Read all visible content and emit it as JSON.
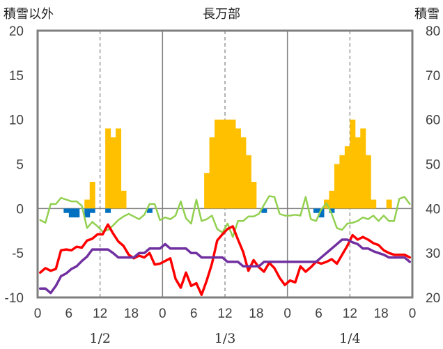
{
  "chart_data": {
    "type": "bar+line",
    "title": "長万部",
    "left_axis_title": "積雪以外",
    "right_axis_title": "積雪",
    "left_axis": {
      "ylim": [
        -10,
        20
      ],
      "ticks": [
        20,
        15,
        10,
        5,
        0,
        -5,
        -10
      ]
    },
    "right_axis": {
      "ylim": [
        20,
        80
      ],
      "ticks": [
        80,
        70,
        60,
        50,
        40,
        30,
        20
      ]
    },
    "x_hours_total": 72,
    "x_tick_labels": [
      "0",
      "6",
      "12",
      "18",
      "0",
      "6",
      "12",
      "18",
      "0",
      "6",
      "12",
      "18",
      "0"
    ],
    "x_tick_hours": [
      0,
      6,
      12,
      18,
      24,
      30,
      36,
      42,
      48,
      54,
      60,
      66,
      72
    ],
    "day_labels": [
      "1/2",
      "1/3",
      "1/4"
    ],
    "day_label_hours": [
      12,
      36,
      60
    ],
    "grid": {
      "solid_vertical_hours": [
        24,
        48
      ],
      "dashed_vertical_hours": [
        12,
        36,
        60
      ],
      "zero_line": true
    },
    "precipitation_bars": {
      "color": "#FFC000",
      "points": [
        [
          9,
          1
        ],
        [
          10,
          3
        ],
        [
          13,
          9
        ],
        [
          14,
          8
        ],
        [
          15,
          9
        ],
        [
          16,
          2
        ],
        [
          32,
          4
        ],
        [
          33,
          8
        ],
        [
          34,
          10
        ],
        [
          35,
          10
        ],
        [
          36,
          10
        ],
        [
          37,
          10
        ],
        [
          38,
          9
        ],
        [
          39,
          8
        ],
        [
          40,
          6
        ],
        [
          41,
          3
        ],
        [
          55,
          1
        ],
        [
          56,
          2
        ],
        [
          57,
          5
        ],
        [
          58,
          6
        ],
        [
          59,
          7
        ],
        [
          60,
          10
        ],
        [
          61,
          8
        ],
        [
          62,
          9
        ],
        [
          63,
          6
        ],
        [
          64,
          1
        ],
        [
          67,
          1
        ]
      ]
    },
    "negative_bars": {
      "color": "#0070C0",
      "points": [
        [
          5,
          -0.5
        ],
        [
          6,
          -1
        ],
        [
          7,
          -1
        ],
        [
          9,
          -1
        ],
        [
          10,
          -0.5
        ],
        [
          13,
          -0.5
        ],
        [
          21,
          -0.5
        ],
        [
          43,
          -0.5
        ],
        [
          53,
          -0.5
        ],
        [
          54,
          -1
        ],
        [
          56,
          -0.5
        ]
      ]
    },
    "series": [
      {
        "color": "#92D050",
        "axis": "left",
        "values": [
          [
            0,
            -1.3
          ],
          [
            1,
            -1.6
          ],
          [
            2,
            0.5
          ],
          [
            3,
            0.5
          ],
          [
            4,
            1.2
          ],
          [
            5,
            1.0
          ],
          [
            6,
            0.8
          ],
          [
            7,
            0.8
          ],
          [
            8,
            0.3
          ],
          [
            9,
            -2.2
          ],
          [
            10,
            -1.5
          ],
          [
            11,
            -2.0
          ],
          [
            12,
            -2.6
          ],
          [
            13,
            -2.4
          ],
          [
            14,
            -1.9
          ],
          [
            15,
            -1.3
          ],
          [
            16,
            -0.9
          ],
          [
            17,
            -0.6
          ],
          [
            18,
            -0.9
          ],
          [
            19,
            -1.2
          ],
          [
            20,
            -0.7
          ],
          [
            21,
            0.5
          ],
          [
            22,
            0.5
          ],
          [
            23,
            -1.3
          ],
          [
            24,
            -1.0
          ],
          [
            25,
            -1.2
          ],
          [
            26,
            -0.8
          ],
          [
            27,
            0.8
          ],
          [
            28,
            -1.1
          ],
          [
            29,
            -1.7
          ],
          [
            30,
            1.0
          ],
          [
            31,
            -1.4
          ],
          [
            32,
            -1.2
          ],
          [
            33,
            -0.8
          ],
          [
            34,
            -2.3
          ],
          [
            35,
            -2.7
          ],
          [
            36,
            -1.7
          ],
          [
            37,
            -3.2
          ],
          [
            38,
            -1.4
          ],
          [
            39,
            -1.4
          ],
          [
            40,
            -0.9
          ],
          [
            41,
            -0.9
          ],
          [
            42,
            -0.6
          ],
          [
            43,
            0.4
          ],
          [
            44,
            1.4
          ],
          [
            45,
            1.3
          ],
          [
            46,
            -0.6
          ],
          [
            47,
            -0.8
          ],
          [
            48,
            -0.8
          ],
          [
            49,
            -0.7
          ],
          [
            50,
            -0.8
          ],
          [
            51,
            1.3
          ],
          [
            52,
            -1.2
          ],
          [
            53,
            -1.4
          ],
          [
            54,
            -0.1
          ],
          [
            55,
            0.6
          ],
          [
            56,
            -0.6
          ],
          [
            57,
            -2.2
          ],
          [
            58,
            -2.4
          ],
          [
            59,
            -1.7
          ],
          [
            60,
            -1.6
          ],
          [
            61,
            -1.4
          ],
          [
            62,
            -1.0
          ],
          [
            63,
            -1.2
          ],
          [
            64,
            -0.8
          ],
          [
            65,
            -1.4
          ],
          [
            66,
            -0.8
          ],
          [
            67,
            -1.4
          ],
          [
            68,
            -1.4
          ],
          [
            69,
            1.1
          ],
          [
            70,
            1.3
          ],
          [
            71,
            0.5
          ]
        ]
      },
      {
        "color": "#FF0000",
        "axis": "left",
        "values": [
          [
            0,
            -7.2
          ],
          [
            1,
            -6.7
          ],
          [
            2,
            -7.0
          ],
          [
            3,
            -6.8
          ],
          [
            4,
            -4.7
          ],
          [
            5,
            -4.6
          ],
          [
            6,
            -4.7
          ],
          [
            7,
            -4.3
          ],
          [
            8,
            -4.4
          ],
          [
            9,
            -3.6
          ],
          [
            10,
            -3.4
          ],
          [
            11,
            -2.9
          ],
          [
            12,
            -2.9
          ],
          [
            13,
            -1.8
          ],
          [
            14,
            -2.8
          ],
          [
            15,
            -3.7
          ],
          [
            16,
            -4.2
          ],
          [
            17,
            -5.2
          ],
          [
            18,
            -5.6
          ],
          [
            19,
            -5.3
          ],
          [
            20,
            -5.5
          ],
          [
            21,
            -5.0
          ],
          [
            22,
            -6.3
          ],
          [
            23,
            -6.2
          ],
          [
            24,
            -5.9
          ],
          [
            25,
            -5.6
          ],
          [
            26,
            -7.9
          ],
          [
            27,
            -8.9
          ],
          [
            28,
            -7.2
          ],
          [
            29,
            -8.7
          ],
          [
            30,
            -8.4
          ],
          [
            31,
            -9.7
          ],
          [
            32,
            -8.1
          ],
          [
            33,
            -6.2
          ],
          [
            34,
            -3.6
          ],
          [
            35,
            -2.9
          ],
          [
            36,
            -2.3
          ],
          [
            37,
            -2.0
          ],
          [
            38,
            -3.5
          ],
          [
            39,
            -4.9
          ],
          [
            40,
            -7.0
          ],
          [
            41,
            -5.8
          ],
          [
            42,
            -6.6
          ],
          [
            43,
            -7.1
          ],
          [
            44,
            -6.1
          ],
          [
            45,
            -6.7
          ],
          [
            46,
            -7.8
          ],
          [
            47,
            -8.6
          ],
          [
            48,
            -8.1
          ],
          [
            49,
            -8.3
          ],
          [
            50,
            -6.5
          ],
          [
            51,
            -7.1
          ],
          [
            52,
            -6.6
          ],
          [
            53,
            -6.0
          ],
          [
            54,
            -6.2
          ],
          [
            55,
            -6.0
          ],
          [
            56,
            -5.7
          ],
          [
            57,
            -6.2
          ],
          [
            58,
            -5.2
          ],
          [
            59,
            -4.2
          ],
          [
            60,
            -3.0
          ],
          [
            61,
            -3.5
          ],
          [
            62,
            -3.2
          ],
          [
            63,
            -3.5
          ],
          [
            64,
            -3.9
          ],
          [
            65,
            -4.1
          ],
          [
            66,
            -4.7
          ],
          [
            67,
            -5.0
          ],
          [
            68,
            -5.2
          ],
          [
            69,
            -5.2
          ],
          [
            70,
            -5.2
          ],
          [
            71,
            -5.5
          ]
        ]
      },
      {
        "color": "#7030A0",
        "axis": "left",
        "values": [
          [
            0,
            -9.0
          ],
          [
            1,
            -9.0
          ],
          [
            2,
            -9.5
          ],
          [
            3,
            -8.7
          ],
          [
            4,
            -7.6
          ],
          [
            5,
            -7.3
          ],
          [
            6,
            -6.8
          ],
          [
            7,
            -6.5
          ],
          [
            8,
            -5.9
          ],
          [
            9,
            -5.4
          ],
          [
            10,
            -4.6
          ],
          [
            11,
            -4.6
          ],
          [
            12,
            -4.6
          ],
          [
            13,
            -4.6
          ],
          [
            14,
            -5.0
          ],
          [
            15,
            -5.5
          ],
          [
            16,
            -5.5
          ],
          [
            17,
            -5.5
          ],
          [
            18,
            -5.5
          ],
          [
            19,
            -5.0
          ],
          [
            20,
            -5.0
          ],
          [
            21,
            -4.5
          ],
          [
            22,
            -4.5
          ],
          [
            23,
            -4.5
          ],
          [
            24,
            -4.0
          ],
          [
            25,
            -4.5
          ],
          [
            26,
            -4.5
          ],
          [
            27,
            -4.5
          ],
          [
            28,
            -4.5
          ],
          [
            29,
            -5.0
          ],
          [
            30,
            -5.0
          ],
          [
            31,
            -5.5
          ],
          [
            32,
            -5.5
          ],
          [
            33,
            -5.5
          ],
          [
            34,
            -5.5
          ],
          [
            35,
            -5.5
          ],
          [
            36,
            -6.0
          ],
          [
            37,
            -6.0
          ],
          [
            38,
            -6.0
          ],
          [
            39,
            -6.5
          ],
          [
            40,
            -6.5
          ],
          [
            41,
            -6.5
          ],
          [
            42,
            -6.5
          ],
          [
            43,
            -6.0
          ],
          [
            44,
            -6.0
          ],
          [
            45,
            -6.0
          ],
          [
            46,
            -6.0
          ],
          [
            47,
            -6.0
          ],
          [
            48,
            -6.0
          ],
          [
            49,
            -6.0
          ],
          [
            50,
            -6.0
          ],
          [
            51,
            -6.0
          ],
          [
            52,
            -6.0
          ],
          [
            53,
            -6.0
          ],
          [
            54,
            -5.5
          ],
          [
            55,
            -5.0
          ],
          [
            56,
            -4.5
          ],
          [
            57,
            -4.0
          ],
          [
            58,
            -3.5
          ],
          [
            59,
            -3.5
          ],
          [
            60,
            -3.8
          ],
          [
            61,
            -4.0
          ],
          [
            62,
            -4.5
          ],
          [
            63,
            -4.5
          ],
          [
            64,
            -4.8
          ],
          [
            65,
            -5.0
          ],
          [
            66,
            -5.2
          ],
          [
            67,
            -5.5
          ],
          [
            68,
            -5.5
          ],
          [
            69,
            -5.5
          ],
          [
            70,
            -5.5
          ],
          [
            71,
            -6.0
          ]
        ]
      }
    ]
  }
}
